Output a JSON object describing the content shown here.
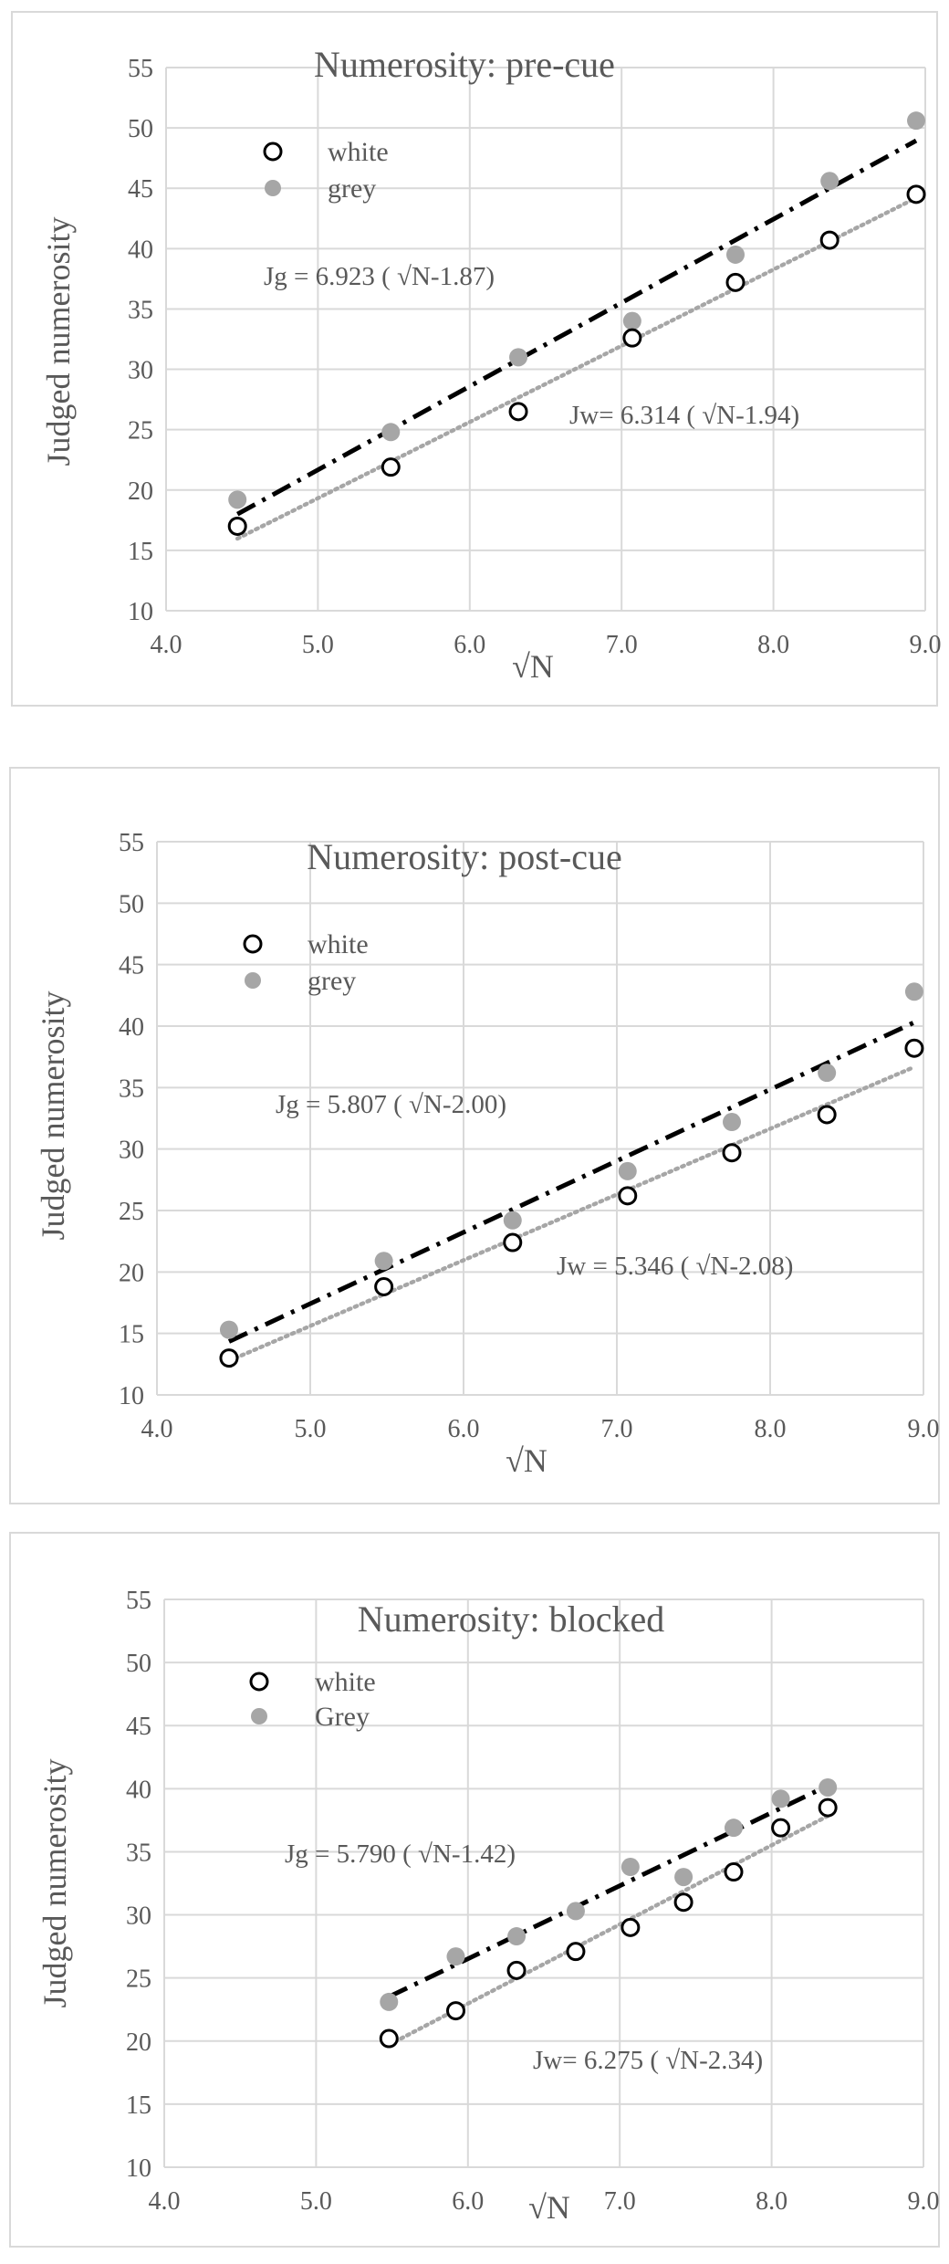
{
  "chart_data": [
    {
      "type": "scatter",
      "title": "Numerosity: pre-cue",
      "xlabel": "√N",
      "ylabel": "Judged numerosity",
      "xlim": [
        4.0,
        9.0
      ],
      "ylim": [
        10,
        55
      ],
      "xticks": [
        "4.0",
        "5.0",
        "6.0",
        "7.0",
        "8.0",
        "9.0"
      ],
      "yticks": [
        "10",
        "15",
        "20",
        "25",
        "30",
        "35",
        "40",
        "45",
        "50",
        "55"
      ],
      "grid": true,
      "legend": [
        {
          "label": "white",
          "marker": "open-circle"
        },
        {
          "label": "grey",
          "marker": "filled-grey-circle"
        }
      ],
      "series": [
        {
          "name": "white",
          "x": [
            4.47,
            5.48,
            6.32,
            7.07,
            7.75,
            8.37,
            8.94
          ],
          "y": [
            17.0,
            21.9,
            26.5,
            32.6,
            37.2,
            40.7,
            44.5
          ]
        },
        {
          "name": "grey",
          "x": [
            4.47,
            5.48,
            6.32,
            7.07,
            7.75,
            8.37,
            8.94
          ],
          "y": [
            19.2,
            24.8,
            31.0,
            34.0,
            39.5,
            45.6,
            50.6
          ]
        }
      ],
      "fits": [
        {
          "series": "grey",
          "equation": "Jg = 6.923 ( √N-1.87)",
          "slope": 6.923,
          "intercept_x": 1.87,
          "x_range": [
            4.47,
            8.94
          ],
          "style": "dash-dot",
          "color": "#000000"
        },
        {
          "series": "white",
          "equation": "Jw= 6.314 ( √N-1.94)",
          "slope": 6.314,
          "intercept_x": 1.94,
          "x_range": [
            4.47,
            8.94
          ],
          "style": "dotted",
          "color": "#a6a6a6"
        }
      ]
    },
    {
      "type": "scatter",
      "title": "Numerosity: post-cue",
      "xlabel": "√N",
      "ylabel": "Judged numerosity",
      "xlim": [
        4.0,
        9.0
      ],
      "ylim": [
        10,
        55
      ],
      "xticks": [
        "4.0",
        "5.0",
        "6.0",
        "7.0",
        "8.0",
        "9.0"
      ],
      "yticks": [
        "10",
        "15",
        "20",
        "25",
        "30",
        "35",
        "40",
        "45",
        "50",
        "55"
      ],
      "grid": true,
      "legend": [
        {
          "label": "white",
          "marker": "open-circle"
        },
        {
          "label": "grey",
          "marker": "filled-grey-circle"
        }
      ],
      "series": [
        {
          "name": "white",
          "x": [
            4.47,
            5.48,
            6.32,
            7.07,
            7.75,
            8.37,
            8.94
          ],
          "y": [
            13.0,
            18.8,
            22.4,
            26.2,
            29.7,
            32.8,
            38.2
          ]
        },
        {
          "name": "grey",
          "x": [
            4.47,
            5.48,
            6.32,
            7.07,
            7.75,
            8.37,
            8.94
          ],
          "y": [
            15.3,
            20.9,
            24.2,
            28.2,
            32.2,
            36.2,
            42.8
          ]
        }
      ],
      "fits": [
        {
          "series": "grey",
          "equation": "Jg = 5.807 ( √N-2.00)",
          "slope": 5.807,
          "intercept_x": 2.0,
          "x_range": [
            4.47,
            8.94
          ],
          "style": "dash-dot",
          "color": "#000000"
        },
        {
          "series": "white",
          "equation": "Jw = 5.346 ( √N-2.08)",
          "slope": 5.346,
          "intercept_x": 2.08,
          "x_range": [
            4.47,
            8.94
          ],
          "style": "dotted",
          "color": "#a6a6a6"
        }
      ]
    },
    {
      "type": "scatter",
      "title": "Numerosity: blocked",
      "xlabel": "√N",
      "ylabel": "Judged numerosity",
      "xlim": [
        4.0,
        9.0
      ],
      "ylim": [
        10,
        55
      ],
      "xticks": [
        "4.0",
        "5.0",
        "6.0",
        "7.0",
        "8.0",
        "9.0"
      ],
      "yticks": [
        "10",
        "15",
        "20",
        "25",
        "30",
        "35",
        "40",
        "45",
        "50",
        "55"
      ],
      "grid": true,
      "legend": [
        {
          "label": "white",
          "marker": "open-circle"
        },
        {
          "label": "Grey",
          "marker": "filled-grey-circle"
        }
      ],
      "series": [
        {
          "name": "white",
          "x": [
            5.48,
            5.92,
            6.32,
            6.71,
            7.07,
            7.42,
            7.75,
            8.06,
            8.37
          ],
          "y": [
            20.2,
            22.4,
            25.6,
            27.1,
            29.0,
            31.0,
            33.4,
            36.9,
            38.5
          ]
        },
        {
          "name": "Grey",
          "x": [
            5.48,
            5.92,
            6.32,
            6.71,
            7.07,
            7.42,
            7.75,
            8.06,
            8.37
          ],
          "y": [
            23.1,
            26.7,
            28.3,
            30.3,
            33.8,
            33.0,
            36.9,
            39.2,
            40.1
          ]
        }
      ],
      "fits": [
        {
          "series": "Grey",
          "equation": "Jg = 5.790 ( √N-1.42)",
          "slope": 5.79,
          "intercept_x": 1.42,
          "x_range": [
            5.48,
            8.37
          ],
          "style": "dash-dot",
          "color": "#000000"
        },
        {
          "series": "white",
          "equation": "Jw= 6.275 ( √N-2.34)",
          "slope": 6.275,
          "intercept_x": 2.34,
          "x_range": [
            5.48,
            8.37
          ],
          "style": "dotted",
          "color": "#a6a6a6"
        }
      ]
    }
  ]
}
